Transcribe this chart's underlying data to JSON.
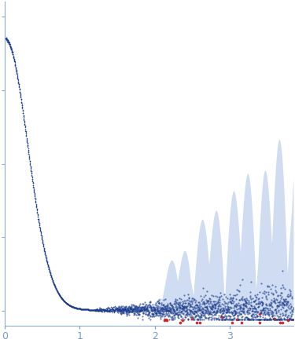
{
  "xlim": [
    0,
    3.85
  ],
  "ylim": [
    -0.05,
    1.05
  ],
  "bg_color": "#ffffff",
  "data_color": "#1a3a8a",
  "error_color": "#a8c0e8",
  "outlier_color": "#cc2222",
  "seed": 42
}
